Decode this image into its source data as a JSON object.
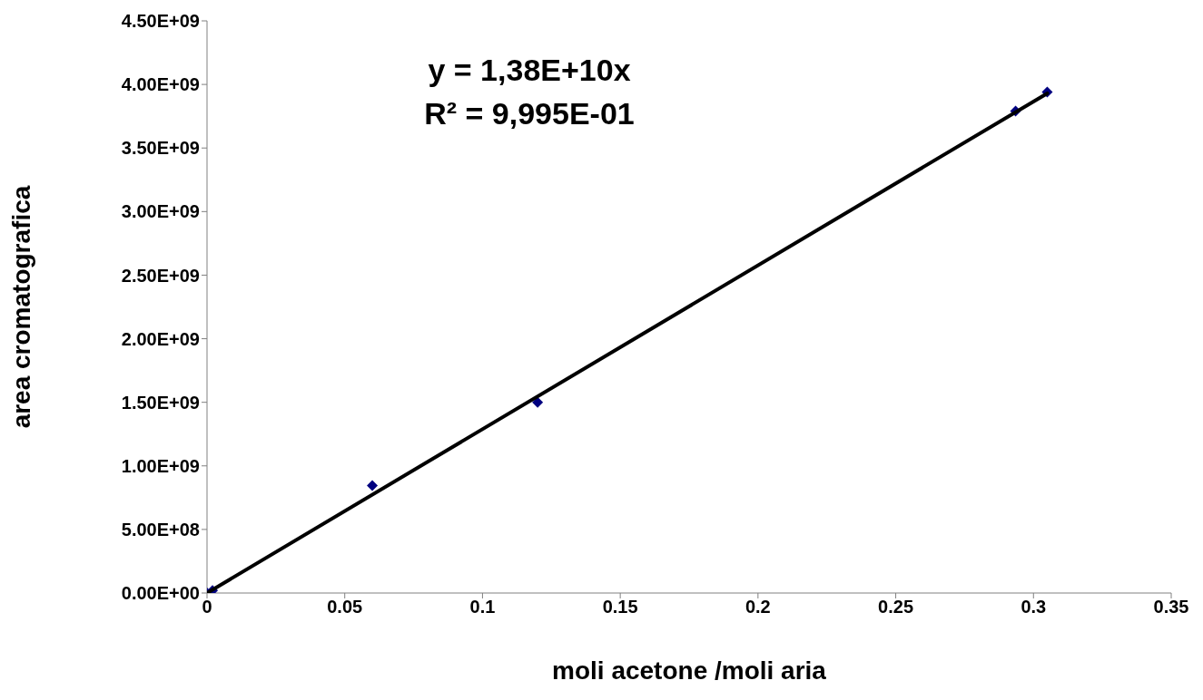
{
  "chart_data": {
    "type": "scatter",
    "xlabel": "moli acetone /moli aria",
    "ylabel": "area cromatografica",
    "annotations": [
      "y = 1,38E+10x",
      "R² = 9,995E-01"
    ],
    "series": [
      {
        "marker": "diamond",
        "color": "#000080",
        "x": [
          0,
          0.002,
          0.06,
          0.12,
          0.2935,
          0.305
        ],
        "values": [
          0,
          20000000,
          845000000,
          1500000000,
          3790000000,
          3940000000
        ]
      },
      {
        "type": "line",
        "marker": "none",
        "color": "#000000",
        "x": [
          0,
          0.305
        ],
        "values": [
          0,
          3930000000
        ]
      }
    ],
    "line_style": "solid",
    "xlim": [
      0,
      0.35
    ],
    "xticks": [
      0,
      0.05,
      0.1,
      0.15,
      0.2,
      0.25,
      0.3,
      0.35
    ],
    "ylim": [
      0,
      4500000000
    ],
    "yticks": [
      {
        "value": 0,
        "label": "0.00E+00"
      },
      {
        "value": 500000000,
        "label": "5.00E+08"
      },
      {
        "value": 1000000000,
        "label": "1.00E+09"
      },
      {
        "value": 1500000000,
        "label": "1.50E+09"
      },
      {
        "value": 2000000000,
        "label": "2.00E+09"
      },
      {
        "value": 2500000000,
        "label": "2.50E+09"
      },
      {
        "value": 3000000000,
        "label": "3.00E+09"
      },
      {
        "value": 3500000000,
        "label": "3.50E+09"
      },
      {
        "value": 4000000000,
        "label": "4.00E+09"
      },
      {
        "value": 4500000000,
        "label": "4.50E+09"
      }
    ],
    "grid": false,
    "legend": false
  }
}
